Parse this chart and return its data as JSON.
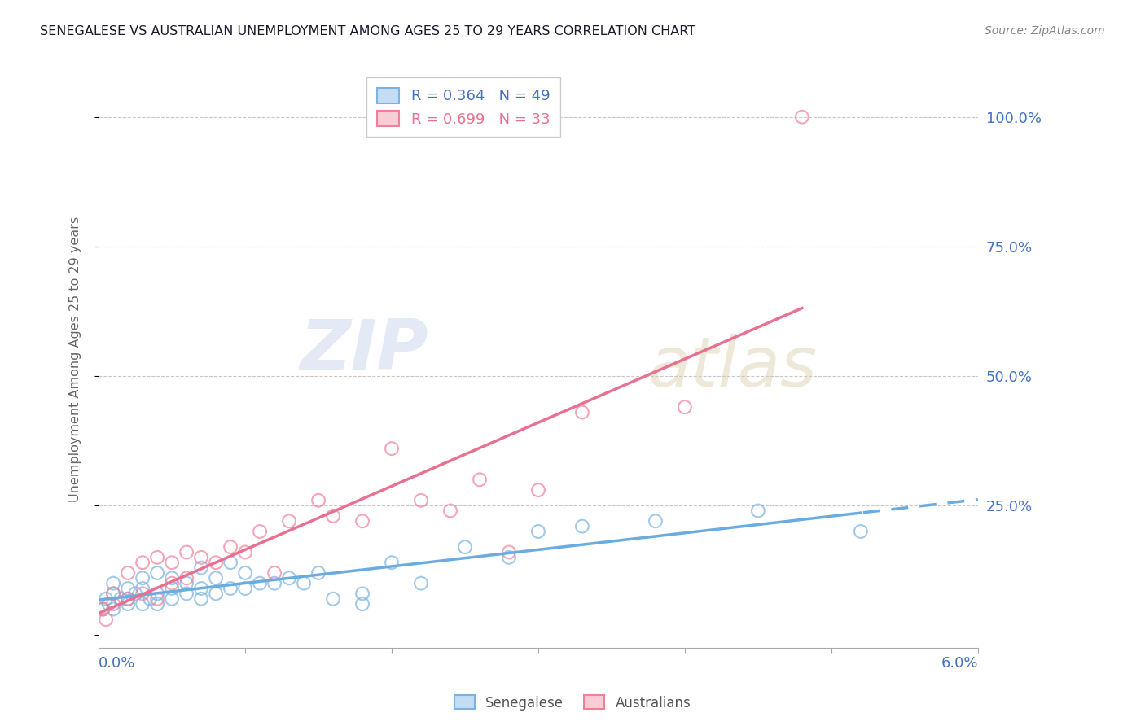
{
  "title": "SENEGALESE VS AUSTRALIAN UNEMPLOYMENT AMONG AGES 25 TO 29 YEARS CORRELATION CHART",
  "source": "Source: ZipAtlas.com",
  "ylabel_label": "Unemployment Among Ages 25 to 29 years",
  "ytick_vals": [
    0.0,
    0.25,
    0.5,
    0.75,
    1.0
  ],
  "ytick_labels": [
    "",
    "25.0%",
    "50.0%",
    "75.0%",
    "100.0%"
  ],
  "xmin": 0.0,
  "xmax": 0.06,
  "ymin": -0.025,
  "ymax": 1.09,
  "blue_scatter_color": "#7ab3e0",
  "pink_scatter_color": "#f08098",
  "blue_line_color": "#6aabe0",
  "pink_line_color": "#e87090",
  "axis_color": "#4472c4",
  "title_color": "#1a1a2e",
  "grid_color": "#c8c8c8",
  "source_color": "#888888",
  "legend_blue_label": "R = 0.364   N = 49",
  "legend_pink_label": "R = 0.699   N = 33",
  "bottom_legend_blue": "Senegalese",
  "bottom_legend_pink": "Australians",
  "senegalese_x": [
    0.0003,
    0.0005,
    0.0007,
    0.001,
    0.001,
    0.001,
    0.0015,
    0.002,
    0.002,
    0.002,
    0.0025,
    0.003,
    0.003,
    0.003,
    0.0035,
    0.004,
    0.004,
    0.004,
    0.005,
    0.005,
    0.005,
    0.006,
    0.006,
    0.007,
    0.007,
    0.007,
    0.008,
    0.008,
    0.009,
    0.009,
    0.01,
    0.01,
    0.011,
    0.012,
    0.013,
    0.014,
    0.015,
    0.016,
    0.018,
    0.018,
    0.02,
    0.022,
    0.025,
    0.028,
    0.03,
    0.033,
    0.038,
    0.045,
    0.052
  ],
  "senegalese_y": [
    0.05,
    0.07,
    0.06,
    0.05,
    0.08,
    0.1,
    0.07,
    0.06,
    0.09,
    0.07,
    0.08,
    0.06,
    0.09,
    0.11,
    0.07,
    0.06,
    0.08,
    0.12,
    0.07,
    0.09,
    0.11,
    0.08,
    0.1,
    0.07,
    0.09,
    0.13,
    0.08,
    0.11,
    0.09,
    0.14,
    0.09,
    0.12,
    0.1,
    0.1,
    0.11,
    0.1,
    0.12,
    0.07,
    0.08,
    0.06,
    0.14,
    0.1,
    0.17,
    0.15,
    0.2,
    0.21,
    0.22,
    0.24,
    0.2
  ],
  "australians_x": [
    0.0003,
    0.0005,
    0.001,
    0.001,
    0.002,
    0.002,
    0.003,
    0.003,
    0.004,
    0.004,
    0.005,
    0.005,
    0.006,
    0.006,
    0.007,
    0.008,
    0.009,
    0.01,
    0.011,
    0.012,
    0.013,
    0.015,
    0.016,
    0.018,
    0.02,
    0.022,
    0.024,
    0.026,
    0.028,
    0.03,
    0.033,
    0.04,
    0.048
  ],
  "australians_y": [
    0.05,
    0.03,
    0.06,
    0.08,
    0.07,
    0.12,
    0.08,
    0.14,
    0.07,
    0.15,
    0.1,
    0.14,
    0.11,
    0.16,
    0.15,
    0.14,
    0.17,
    0.16,
    0.2,
    0.12,
    0.22,
    0.26,
    0.23,
    0.22,
    0.36,
    0.26,
    0.24,
    0.3,
    0.16,
    0.28,
    0.43,
    0.44,
    1.0
  ]
}
